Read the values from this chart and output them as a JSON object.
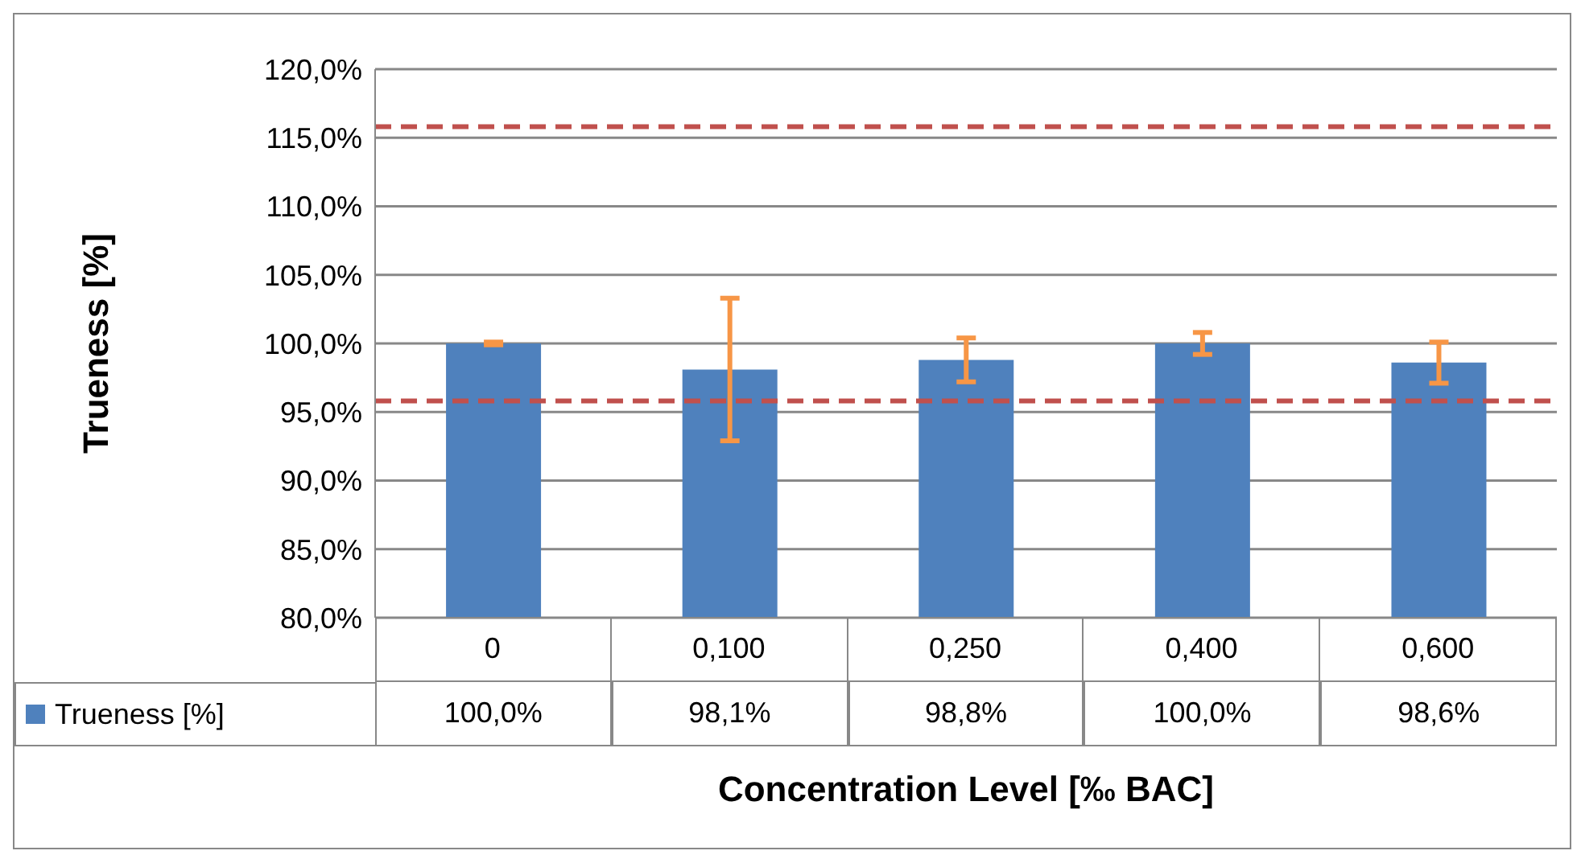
{
  "chart_data": {
    "type": "bar",
    "xlabel": "Concentration Level [‰ BAC]",
    "ylabel": "Trueness [%]",
    "categories": [
      "0",
      "0,100",
      "0,250",
      "0,400",
      "0,600"
    ],
    "series": [
      {
        "name": "Trueness [%]",
        "color": "#4f81bd",
        "values": [
          100.0,
          98.1,
          98.8,
          100.0,
          98.6
        ],
        "errors": [
          0.1,
          5.2,
          1.6,
          0.8,
          1.5
        ],
        "value_labels": [
          "100,0%",
          "98,1%",
          "98,8%",
          "100,0%",
          "98,6%"
        ]
      }
    ],
    "ylim": [
      80,
      120
    ],
    "yticks": [
      {
        "value": 80,
        "label": "80,0%"
      },
      {
        "value": 85,
        "label": "85,0%"
      },
      {
        "value": 90,
        "label": "90,0%"
      },
      {
        "value": 95,
        "label": "95,0%"
      },
      {
        "value": 100,
        "label": "100,0%"
      },
      {
        "value": 105,
        "label": "105,0%"
      },
      {
        "value": 110,
        "label": "110,0%"
      },
      {
        "value": 115,
        "label": "115,0%"
      },
      {
        "value": 120,
        "label": "120,0%"
      }
    ],
    "ref_lines": [
      {
        "axis": "y",
        "value": 115.8,
        "color": "#c0504d",
        "line_style": "dashed"
      },
      {
        "axis": "y",
        "value": 95.8,
        "color": "#c0504d",
        "line_style": "dashed"
      }
    ],
    "grid": "y",
    "legend": "bottom"
  }
}
